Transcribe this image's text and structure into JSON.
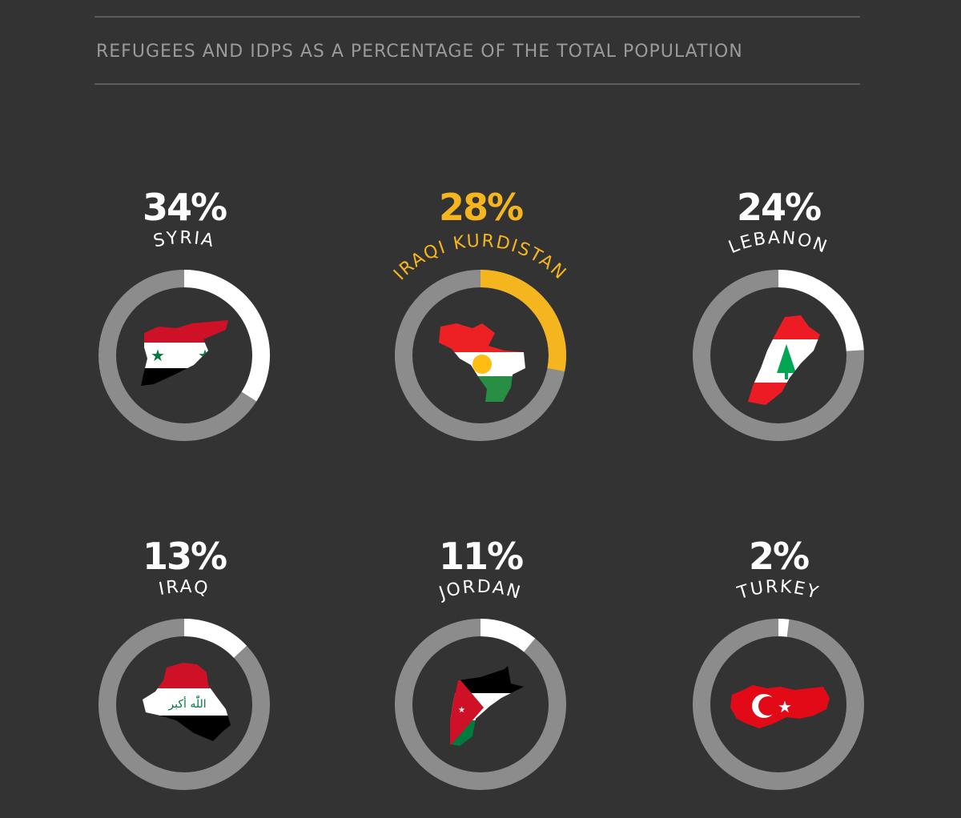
{
  "chart_data": {
    "type": "donut",
    "title": "REFUGEES AND IDPS AS A PERCENTAGE OF THE TOTAL POPULATION",
    "unit": "%",
    "items": [
      {
        "name": "SYRIA",
        "value": 34,
        "label": "34%",
        "highlight": false
      },
      {
        "name": "IRAQI KURDISTAN",
        "value": 28,
        "label": "28%",
        "highlight": true
      },
      {
        "name": "LEBANON",
        "value": 24,
        "label": "24%",
        "highlight": false
      },
      {
        "name": "IRAQ",
        "value": 13,
        "label": "13%",
        "highlight": false
      },
      {
        "name": "JORDAN",
        "value": 11,
        "label": "11%",
        "highlight": false
      },
      {
        "name": "TURKEY",
        "value": 2,
        "label": "2%",
        "highlight": false
      }
    ]
  },
  "colors": {
    "background": "#333333",
    "track": "#8c8c8c",
    "fill": "#ffffff",
    "highlight": "#f5b51e",
    "text": "#ffffff",
    "subtitle": "#9a9a9a"
  },
  "icons": [
    "syria-flag-map-icon",
    "kurdistan-flag-map-icon",
    "lebanon-flag-map-icon",
    "iraq-flag-map-icon",
    "jordan-flag-map-icon",
    "turkey-flag-map-icon"
  ]
}
